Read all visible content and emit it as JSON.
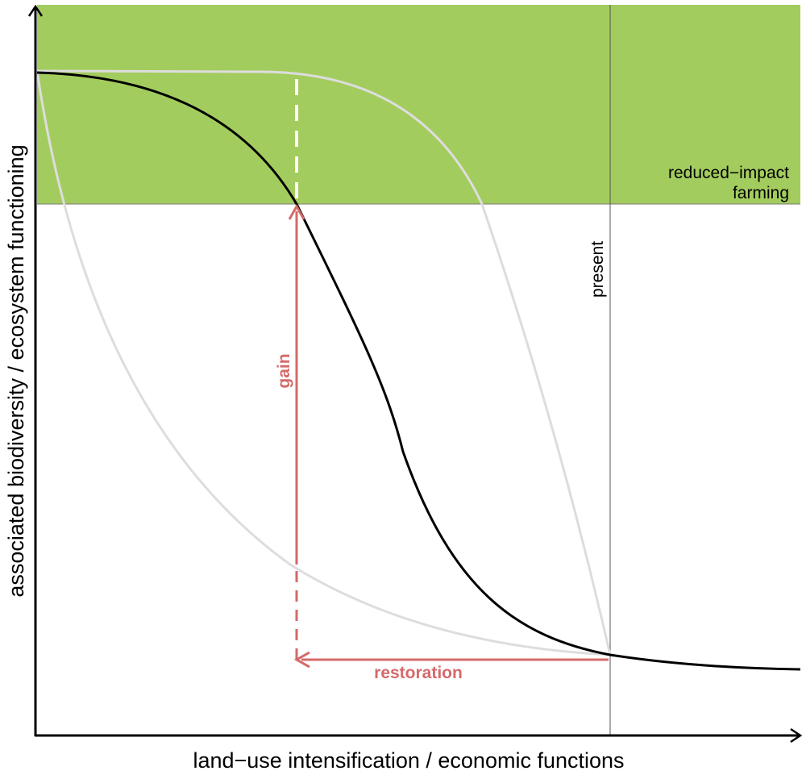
{
  "diagram": {
    "axes": {
      "x_title": "land−use intensification / economic functions",
      "y_title": "associated biodiversity / ecosystem functioning"
    },
    "zone": {
      "label_line1": "reduced−impact",
      "label_line2": "farming",
      "color": "#a3cc5e"
    },
    "present_marker": {
      "label": "present"
    },
    "arrows": {
      "gain_label": "gain",
      "restoration_label": "restoration",
      "color": "#d46a6a"
    },
    "curves": {
      "main_color": "#000000",
      "alternative_color": "#dddddd"
    }
  }
}
